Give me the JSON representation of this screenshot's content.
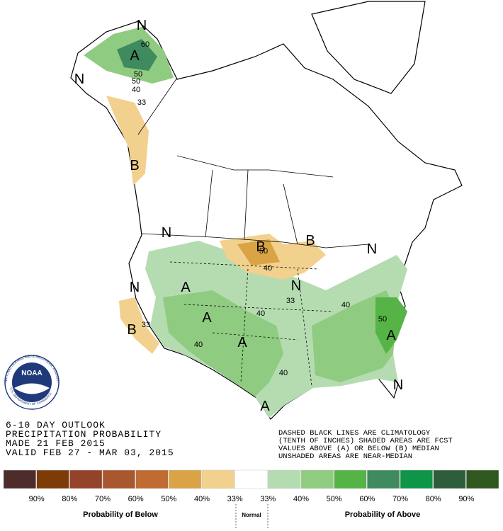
{
  "map": {
    "labels": [
      "N",
      "A",
      "60",
      "50",
      "50",
      "40",
      "33",
      "N",
      "B",
      "N",
      "B",
      "50",
      "40",
      "B",
      "N",
      "33",
      "40",
      "A",
      "A",
      "40",
      "N",
      "40",
      "A",
      "50",
      "40",
      "N",
      "B",
      "33",
      "N",
      "A",
      "A"
    ]
  },
  "logo": {
    "name": "NOAA",
    "ring": "NATIONAL OCEANIC AND ATMOSPHERIC ADMINISTRATION",
    "dept": "U.S. DEPARTMENT OF COMMERCE"
  },
  "title_block": {
    "lines": [
      "6-10 DAY OUTLOOK",
      "PRECIPITATION PROBABILITY",
      "MADE  21 FEB 2015",
      "VALID  FEB 27 - MAR 03, 2015"
    ]
  },
  "notes": {
    "lines": [
      "DASHED BLACK LINES ARE CLIMATOLOGY",
      "(TENTH OF INCHES) SHADED AREAS ARE FCST",
      "VALUES ABOVE (A) OR BELOW (B) MEDIAN",
      "UNSHADED AREAS ARE NEAR-MEDIAN"
    ]
  },
  "legend": {
    "colors": [
      "#4f2c2c",
      "#7d3c07",
      "#94432b",
      "#a9572f",
      "#c06b32",
      "#d9a346",
      "#f1d18d",
      "#ffffff",
      "#b5dcb1",
      "#8fcb80",
      "#56b446",
      "#3f8a5f",
      "#0e9548",
      "#2e5d3b",
      "#2e581f"
    ],
    "labels": [
      "90%",
      "80%",
      "70%",
      "60%",
      "50%",
      "40%",
      "33%",
      "33%",
      "40%",
      "50%",
      "60%",
      "70%",
      "80%",
      "90%"
    ],
    "below": "Probability of Below",
    "normal": "Normal",
    "above": "Probability of Above"
  }
}
